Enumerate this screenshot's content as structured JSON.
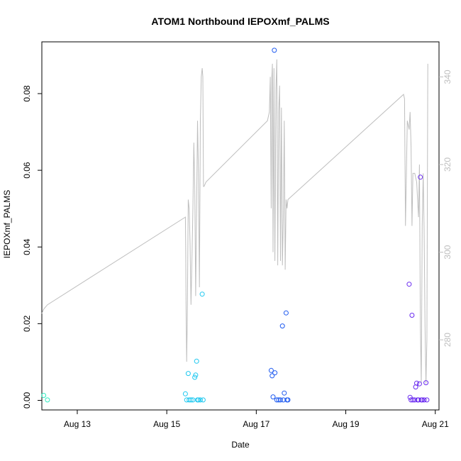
{
  "chart_data": {
    "type": "scatter",
    "title": "ATOM1 Northbound IEPOXmf_PALMS",
    "xlabel": "Date",
    "ylabel": "IEPOXmf_PALMS",
    "xlim": [
      "2016-08-12 05:00",
      "2016-08-21 02:00"
    ],
    "ylim": [
      -0.0025,
      0.0935
    ],
    "y2lim": [
      264,
      348
    ],
    "x_ticks": [
      {
        "label": "Aug 13",
        "value": "2016-08-13 00:00"
      },
      {
        "label": "Aug 15",
        "value": "2016-08-15 00:00"
      },
      {
        "label": "Aug 17",
        "value": "2016-08-17 00:00"
      },
      {
        "label": "Aug 19",
        "value": "2016-08-19 00:00"
      },
      {
        "label": "Aug 21",
        "value": "2016-08-21 00:00"
      }
    ],
    "y_ticks": [
      "0.00",
      "0.02",
      "0.04",
      "0.06",
      "0.08"
    ],
    "y2_ticks": [
      "280",
      "300",
      "320",
      "340"
    ],
    "point_colors": [
      "#2DEBC0",
      "#1EC8F0",
      "#1E5AF0",
      "#6A2AF0"
    ],
    "line_color": "#bebebe",
    "series": [
      {
        "color": "#2DEBC0",
        "points": [
          [
            "2016-08-12 06:00",
            0.0013
          ],
          [
            "2016-08-12 08:00",
            0.0001
          ]
        ]
      },
      {
        "color": "#1EC8F0",
        "points": [
          [
            "2016-08-15 10:00",
            0.0017
          ],
          [
            "2016-08-15 10:40",
            0.0001
          ],
          [
            "2016-08-15 11:30",
            0.007
          ],
          [
            "2016-08-15 12:00",
            0.0001
          ],
          [
            "2016-08-15 13:00",
            0.0001
          ],
          [
            "2016-08-15 14:00",
            0.0001
          ],
          [
            "2016-08-15 15:00",
            0.006
          ],
          [
            "2016-08-15 15:30",
            0.0066
          ],
          [
            "2016-08-15 16:00",
            0.0102
          ],
          [
            "2016-08-15 16:30",
            0.0001
          ],
          [
            "2016-08-15 17:00",
            0.0001
          ],
          [
            "2016-08-15 18:00",
            0.0001
          ],
          [
            "2016-08-15 19:00",
            0.0277
          ],
          [
            "2016-08-15 19:30",
            0.0001
          ]
        ]
      },
      {
        "color": "#1E5AF0",
        "points": [
          [
            "2016-08-17 08:00",
            0.0078
          ],
          [
            "2016-08-17 08:30",
            0.0064
          ],
          [
            "2016-08-17 09:00",
            0.0009
          ],
          [
            "2016-08-17 09:40",
            0.0913
          ],
          [
            "2016-08-17 10:00",
            0.0072
          ],
          [
            "2016-08-17 11:00",
            0.0001
          ],
          [
            "2016-08-17 12:00",
            0.0001
          ],
          [
            "2016-08-17 13:00",
            0.0001
          ],
          [
            "2016-08-17 14:00",
            0.0194
          ],
          [
            "2016-08-17 14:30",
            0.0001
          ],
          [
            "2016-08-17 15:00",
            0.0019
          ],
          [
            "2016-08-17 16:00",
            0.0228
          ],
          [
            "2016-08-17 16:30",
            0.0001
          ],
          [
            "2016-08-17 17:00",
            0.0001
          ]
        ]
      },
      {
        "color": "#6A2AF0",
        "points": [
          [
            "2016-08-20 10:00",
            0.0303
          ],
          [
            "2016-08-20 10:30",
            0.0008
          ],
          [
            "2016-08-20 11:00",
            0.0001
          ],
          [
            "2016-08-20 11:30",
            0.0222
          ],
          [
            "2016-08-20 12:00",
            0.0001
          ],
          [
            "2016-08-20 13:00",
            0.0001
          ],
          [
            "2016-08-20 13:30",
            0.0035
          ],
          [
            "2016-08-20 14:00",
            0.0045
          ],
          [
            "2016-08-20 14:30",
            0.0001
          ],
          [
            "2016-08-20 15:00",
            0.0001
          ],
          [
            "2016-08-20 15:30",
            0.0043
          ],
          [
            "2016-08-20 16:00",
            0.0582
          ],
          [
            "2016-08-20 16:30",
            0.0001
          ],
          [
            "2016-08-20 17:00",
            0.0001
          ],
          [
            "2016-08-20 18:00",
            0.0001
          ],
          [
            "2016-08-20 19:00",
            0.0046
          ],
          [
            "2016-08-20 19:30",
            0.0001
          ]
        ]
      }
    ],
    "secondary_line": [
      [
        "2016-08-12 05:00",
        286
      ],
      [
        "2016-08-12 06:00",
        287
      ],
      [
        "2016-08-12 08:00",
        288
      ],
      [
        "2016-08-15 10:00",
        308
      ],
      [
        "2016-08-15 10:10",
        300
      ],
      [
        "2016-08-15 10:20",
        288
      ],
      [
        "2016-08-15 10:40",
        275
      ],
      [
        "2016-08-15 11:00",
        285
      ],
      [
        "2016-08-15 11:30",
        312
      ],
      [
        "2016-08-15 12:00",
        310
      ],
      [
        "2016-08-15 12:30",
        302
      ],
      [
        "2016-08-15 13:00",
        288
      ],
      [
        "2016-08-15 13:30",
        298
      ],
      [
        "2016-08-15 14:00",
        310
      ],
      [
        "2016-08-15 14:30",
        325
      ],
      [
        "2016-08-15 15:00",
        315
      ],
      [
        "2016-08-15 15:30",
        290
      ],
      [
        "2016-08-15 16:00",
        310
      ],
      [
        "2016-08-15 16:30",
        330
      ],
      [
        "2016-08-15 17:00",
        318
      ],
      [
        "2016-08-15 17:30",
        292
      ],
      [
        "2016-08-15 18:00",
        330
      ],
      [
        "2016-08-15 18:30",
        340
      ],
      [
        "2016-08-15 19:00",
        342
      ],
      [
        "2016-08-15 19:20",
        340
      ],
      [
        "2016-08-15 19:40",
        315
      ],
      [
        "2016-08-15 20:00",
        315
      ],
      [
        "2016-08-15 21:00",
        316
      ],
      [
        "2016-08-17 06:00",
        330
      ],
      [
        "2016-08-17 07:00",
        332
      ],
      [
        "2016-08-17 07:30",
        340
      ],
      [
        "2016-08-17 08:00",
        310
      ],
      [
        "2016-08-17 08:20",
        340
      ],
      [
        "2016-08-17 08:40",
        343
      ],
      [
        "2016-08-17 09:00",
        300
      ],
      [
        "2016-08-17 09:30",
        342
      ],
      [
        "2016-08-17 10:00",
        298
      ],
      [
        "2016-08-17 10:30",
        337
      ],
      [
        "2016-08-17 11:00",
        344
      ],
      [
        "2016-08-17 11:30",
        297
      ],
      [
        "2016-08-17 12:00",
        332
      ],
      [
        "2016-08-17 12:30",
        338
      ],
      [
        "2016-08-17 13:00",
        298
      ],
      [
        "2016-08-17 13:30",
        333
      ],
      [
        "2016-08-17 14:00",
        297
      ],
      [
        "2016-08-17 14:30",
        308
      ],
      [
        "2016-08-17 15:00",
        330
      ],
      [
        "2016-08-17 15:30",
        296
      ],
      [
        "2016-08-17 16:00",
        312
      ],
      [
        "2016-08-17 16:30",
        310
      ],
      [
        "2016-08-17 17:00",
        312
      ],
      [
        "2016-08-20 07:00",
        336
      ],
      [
        "2016-08-20 07:30",
        335
      ],
      [
        "2016-08-20 08:00",
        306
      ],
      [
        "2016-08-20 09:00",
        330
      ],
      [
        "2016-08-20 10:00",
        328
      ],
      [
        "2016-08-20 10:30",
        332
      ],
      [
        "2016-08-20 11:00",
        324
      ],
      [
        "2016-08-20 11:30",
        306
      ],
      [
        "2016-08-20 12:00",
        318
      ],
      [
        "2016-08-20 13:00",
        318
      ],
      [
        "2016-08-20 14:00",
        316
      ],
      [
        "2016-08-20 15:00",
        308
      ],
      [
        "2016-08-20 15:30",
        320
      ],
      [
        "2016-08-20 16:00",
        283
      ],
      [
        "2016-08-20 16:30",
        270
      ],
      [
        "2016-08-20 17:00",
        306
      ],
      [
        "2016-08-20 17:30",
        318
      ],
      [
        "2016-08-20 18:00",
        305
      ],
      [
        "2016-08-20 18:30",
        283
      ],
      [
        "2016-08-20 19:00",
        270
      ],
      [
        "2016-08-20 19:30",
        280
      ],
      [
        "2016-08-20 20:00",
        343
      ]
    ]
  }
}
